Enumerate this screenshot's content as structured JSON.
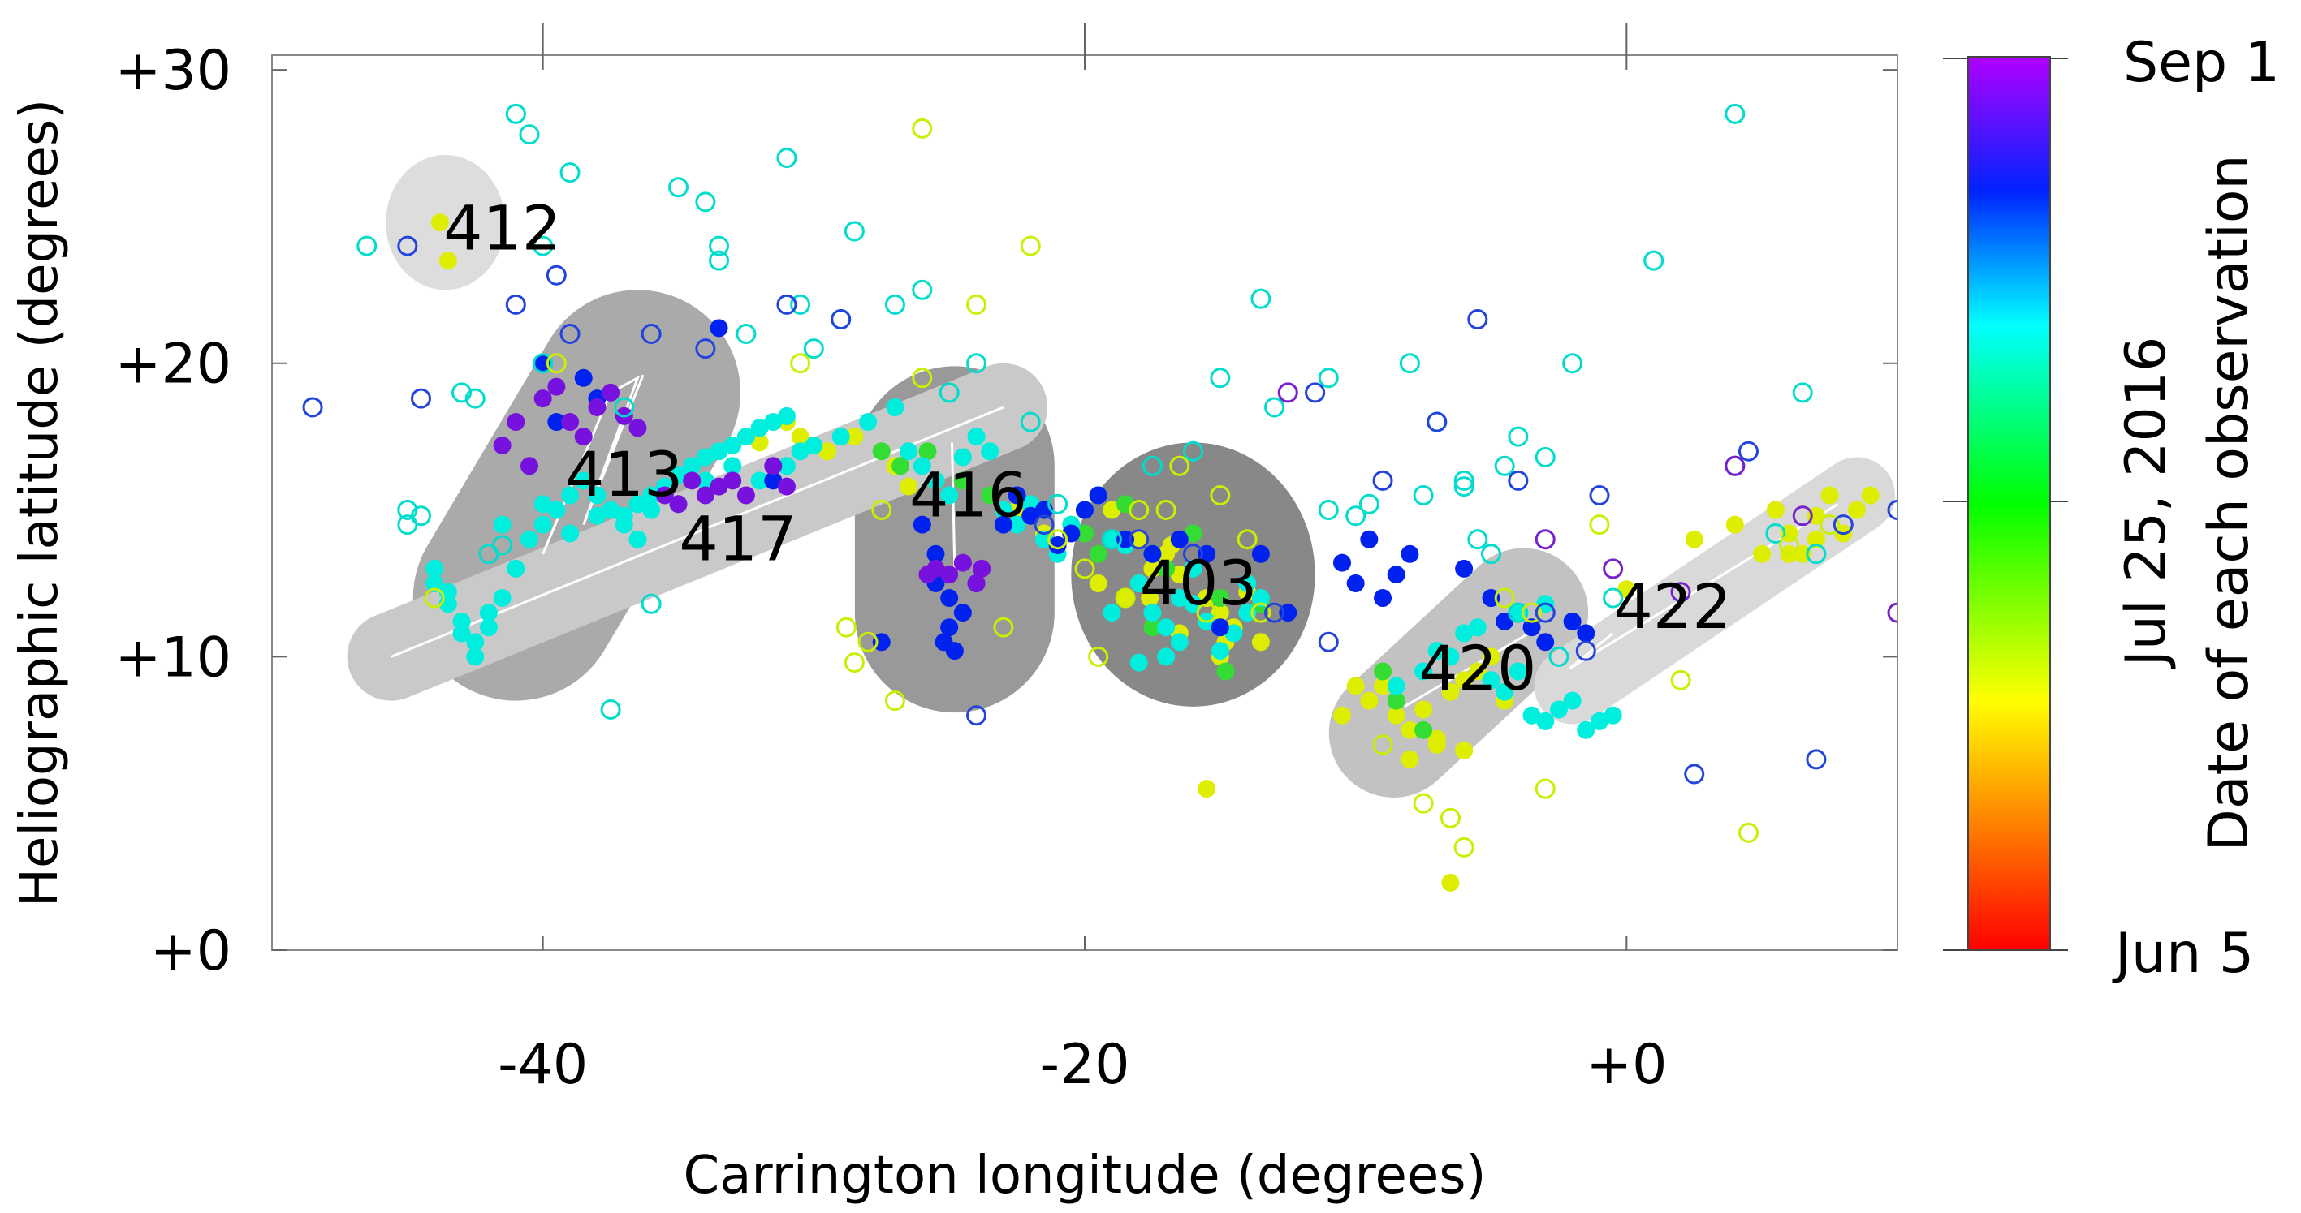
{
  "chart_data": {
    "type": "scatter",
    "xlabel": "Carrington longitude (degrees)",
    "ylabel": "Heliographic latitude (degrees)",
    "xlim": [
      -50,
      10
    ],
    "ylim": [
      0,
      30.5
    ],
    "x_ticks": [
      -40,
      -20,
      0
    ],
    "x_tick_labels": [
      "-40",
      "-20",
      "+0"
    ],
    "y_ticks": [
      0,
      10,
      20,
      30
    ],
    "y_tick_labels": [
      "+0",
      "+10",
      "+20",
      "+30"
    ],
    "grid": false,
    "colorbar": {
      "label": "Date of each observation",
      "tick_labels": [
        "Jun 5",
        "Jul 25, 2016",
        "Sep 1"
      ],
      "colors": [
        "#ff0000",
        "#ffff00",
        "#00ff00",
        "#00ffff",
        "#0000ff",
        "#a000ff"
      ]
    },
    "regions": [
      {
        "name": "412",
        "x": -43.6,
        "y": 24.8,
        "rx": 2.2,
        "ry": 2.3,
        "color": "#dddddd"
      },
      {
        "name": "413",
        "shape": "capsule",
        "x1": -36.5,
        "y1": 19.0,
        "x2": -41.0,
        "y2": 12.0,
        "width": 7.0,
        "color": "#aaaaaa"
      },
      {
        "name": "416",
        "shape": "capsule",
        "x1": -24.8,
        "y1": 16.5,
        "x2": -24.8,
        "y2": 11.5,
        "width": 6.8,
        "color": "#999999"
      },
      {
        "name": "403",
        "x": -16.0,
        "y": 12.8,
        "rx": 4.5,
        "ry": 4.5,
        "color": "#888888"
      },
      {
        "name": "417",
        "shape": "capsule",
        "x1": -45.6,
        "y1": 10.0,
        "x2": -23.0,
        "y2": 18.5,
        "width": 3.0,
        "color": "#c9c9c9"
      },
      {
        "name": "420",
        "shape": "capsule",
        "x1": -8.6,
        "y1": 7.4,
        "x2": -3.8,
        "y2": 11.5,
        "width": 4.4,
        "color": "#c2c2c2"
      },
      {
        "name": "422",
        "shape": "capsule",
        "x1": -2.0,
        "y1": 9.0,
        "x2": 8.5,
        "y2": 15.5,
        "width": 2.6,
        "color": "#d9d9d9"
      }
    ],
    "region_labels": [
      {
        "text": "412",
        "x": -41.5,
        "y": 24.6
      },
      {
        "text": "413",
        "x": -37.0,
        "y": 16.2
      },
      {
        "text": "417",
        "x": -32.8,
        "y": 14.0
      },
      {
        "text": "416",
        "x": -24.3,
        "y": 15.5
      },
      {
        "text": "403",
        "x": -15.8,
        "y": 12.5
      },
      {
        "text": "420",
        "x": -5.5,
        "y": 9.6
      },
      {
        "text": "422",
        "x": 1.7,
        "y": 11.7
      }
    ],
    "trajectories": [
      {
        "points": [
          [
            -45.6,
            10.0
          ],
          [
            -23.0,
            18.5
          ]
        ]
      },
      {
        "points": [
          [
            -40.0,
            13.5
          ],
          [
            -37.5,
            19.0
          ],
          [
            -36.5,
            19.5
          ],
          [
            -38.5,
            14.5
          ],
          [
            -36.3,
            19.6
          ]
        ]
      },
      {
        "points": [
          [
            -24.9,
            17.3
          ],
          [
            -24.8,
            13.0
          ]
        ]
      },
      {
        "points": [
          [
            7.8,
            15.2
          ],
          [
            -2.1,
            9.6
          ],
          [
            -0.5,
            10.8
          ]
        ]
      },
      {
        "points": [
          [
            -8.2,
            8.3
          ],
          [
            -3.6,
            10.8
          ]
        ]
      }
    ],
    "series": [
      {
        "group": "early-jun",
        "color": "#ff9900",
        "filled": false,
        "x": [],
        "y": []
      },
      {
        "group": "mid-jul-yellow",
        "color": "#ddee00",
        "filled": true,
        "x": [
          -43.5,
          -43.8,
          -28.5,
          -27.0,
          -26.5,
          -25.5,
          -22.5,
          -21.5,
          -21.0,
          -20.5,
          -19.5,
          -18.5,
          -18.0,
          -17.5,
          -16.8,
          -16.5,
          -15.5,
          -15.0,
          -14.5,
          -14.0,
          -13.5,
          -15.0,
          -16.5,
          -17.0,
          -18.0,
          -19.0,
          -19.5,
          -17.6,
          -14.8,
          -15.5,
          -10.5,
          -10.0,
          -9.5,
          -9.0,
          -8.5,
          -8.0,
          -7.5,
          -7.0,
          -6.5,
          -6.0,
          -5.5,
          -5.0,
          -4.5,
          -8.0,
          -7.0,
          -6.0,
          -6.5,
          0.0,
          2.5,
          4.0,
          5.5,
          6.0,
          6.5,
          7.0,
          7.5,
          8.0,
          8.5,
          9.0,
          5.0,
          6.0,
          7.0,
          -30.5,
          -29.5,
          -31.0,
          -32.0
        ],
        "y": [
          23.5,
          24.8,
          17.5,
          16.5,
          15.8,
          16.0,
          15.0,
          14.2,
          13.8,
          14.5,
          15.5,
          12.0,
          12.5,
          13.0,
          13.8,
          12.8,
          12.0,
          11.5,
          11.0,
          12.2,
          10.5,
          10.0,
          10.8,
          13.5,
          14.0,
          15.0,
          12.5,
          12.0,
          10.5,
          5.5,
          8.0,
          9.0,
          8.5,
          9.0,
          8.0,
          7.5,
          8.2,
          7.0,
          8.8,
          9.2,
          9.5,
          10.0,
          8.5,
          6.5,
          7.2,
          6.8,
          2.3,
          12.3,
          14.0,
          14.5,
          15.0,
          14.2,
          13.5,
          14.8,
          15.5,
          14.2,
          15.0,
          15.5,
          13.5,
          13.5,
          14.0,
          17.5,
          17.0,
          18.0,
          17.3
        ]
      },
      {
        "group": "late-jul-green",
        "color": "#33dd33",
        "filled": true,
        "x": [
          -27.5,
          -26.8,
          -25.8,
          -24.5,
          -23.5,
          -22.5,
          -20.0,
          -19.5,
          -18.5,
          -17.0,
          -16.0,
          -15.0,
          -13.5,
          -17.5,
          -14.8,
          -9.0,
          -8.5,
          -7.5
        ],
        "y": [
          17.0,
          16.5,
          17.0,
          16.0,
          15.5,
          14.5,
          14.2,
          13.5,
          15.2,
          13.0,
          14.2,
          12.0,
          11.8,
          11.0,
          9.5,
          9.5,
          8.5,
          7.5
        ]
      },
      {
        "group": "aug-cyan",
        "color": "#00eedd",
        "filled": true,
        "x": [
          -44.0,
          -43.5,
          -43.0,
          -42.5,
          -42.0,
          -41.5,
          -41.0,
          -40.5,
          -40.0,
          -39.5,
          -39.0,
          -38.5,
          -38.0,
          -37.5,
          -37.0,
          -36.5,
          -36.0,
          -35.5,
          -35.0,
          -34.5,
          -34.0,
          -33.5,
          -33.0,
          -32.5,
          -32.0,
          -31.5,
          -31.0,
          -44.0,
          -43.5,
          -43.0,
          -42.5,
          -42.0,
          -41.5,
          -40.0,
          -39.0,
          -38.0,
          -37.0,
          -36.5,
          -36.0,
          -35.0,
          -34.0,
          -33.0,
          -32.0,
          -31.0,
          -30.5,
          -30.0,
          -29.0,
          -28.0,
          -27.0,
          -26.5,
          -26.0,
          -25.5,
          -25.0,
          -24.5,
          -24.0,
          -23.5,
          -23.0,
          -22.5,
          -22.0,
          -21.5,
          -21.0,
          -20.5,
          -20.0,
          -19.5,
          -19.0,
          -18.5,
          -18.0,
          -17.5,
          -17.0,
          -16.5,
          -16.0,
          -15.5,
          -15.0,
          -14.5,
          -14.0,
          -13.5,
          -17.0,
          -18.0,
          -19.0,
          -16.5,
          -15.0,
          -14.0,
          -16.0,
          -17.5,
          -8.5,
          -7.5,
          -7.0,
          -6.0,
          -5.5,
          -5.0,
          -4.5,
          -4.0,
          -3.5,
          -3.0,
          -2.5,
          -2.0,
          -1.5,
          -1.0,
          -0.5,
          -6.5,
          -3.0,
          -4.0
        ],
        "y": [
          12.5,
          11.8,
          11.2,
          10.5,
          11.5,
          12.0,
          13.0,
          14.0,
          14.5,
          15.0,
          15.5,
          16.0,
          15.5,
          15.0,
          14.8,
          15.2,
          15.5,
          15.8,
          16.2,
          16.5,
          16.8,
          17.0,
          17.2,
          17.5,
          17.8,
          18.0,
          18.2,
          13.0,
          12.2,
          10.8,
          10.0,
          11.0,
          14.5,
          15.2,
          14.2,
          14.8,
          14.5,
          14.0,
          15.0,
          15.2,
          16.0,
          16.5,
          16.0,
          16.5,
          17.0,
          17.2,
          17.5,
          18.0,
          18.5,
          17.0,
          16.5,
          16.0,
          15.5,
          16.8,
          17.5,
          17.0,
          15.0,
          14.5,
          15.2,
          14.0,
          13.5,
          14.5,
          15.0,
          15.5,
          14.0,
          13.8,
          12.5,
          11.5,
          11.0,
          12.0,
          11.8,
          11.2,
          11.0,
          10.8,
          11.5,
          12.0,
          10.0,
          9.8,
          11.5,
          10.5,
          10.2,
          12.5,
          13.0,
          13.5,
          9.0,
          9.5,
          10.2,
          10.8,
          11.0,
          9.2,
          8.8,
          9.5,
          8.0,
          7.8,
          8.2,
          8.5,
          7.5,
          7.8,
          8.0,
          10.0,
          11.8,
          11.5
        ]
      },
      {
        "group": "aug-blue",
        "color": "#0022ee",
        "filled": true,
        "x": [
          -40.0,
          -39.5,
          -38.5,
          -38.0,
          -33.5,
          -31.5,
          -27.5,
          -26.0,
          -25.5,
          -25.0,
          -24.5,
          -24.0,
          -23.0,
          -22.5,
          -22.0,
          -21.5,
          -21.0,
          -20.5,
          -20.0,
          -19.5,
          -18.5,
          -17.5,
          -16.5,
          -15.5,
          -15.0,
          -13.5,
          -12.5,
          -10.5,
          -10.0,
          -9.5,
          -9.0,
          -8.5,
          -8.0,
          -6.0,
          -5.0,
          -4.5,
          -3.5,
          -3.0,
          -2.0,
          -1.5,
          -25.0,
          -25.2,
          -24.8,
          -25.5
        ],
        "y": [
          20.0,
          18.0,
          19.5,
          18.8,
          21.2,
          16.0,
          10.5,
          14.5,
          12.5,
          12.0,
          11.5,
          12.5,
          14.5,
          15.5,
          14.8,
          15.0,
          13.8,
          14.2,
          15.0,
          15.5,
          14.0,
          13.5,
          14.0,
          13.5,
          11.0,
          13.5,
          11.5,
          13.2,
          12.5,
          14.0,
          12.0,
          12.8,
          13.5,
          13.0,
          12.0,
          11.2,
          11.0,
          10.5,
          11.2,
          10.8,
          11.0,
          10.5,
          10.2,
          13.5
        ]
      },
      {
        "group": "sep-purple",
        "color": "#7711dd",
        "filled": true,
        "x": [
          -41.5,
          -40.0,
          -39.5,
          -39.0,
          -38.5,
          -38.0,
          -37.5,
          -37.0,
          -36.5,
          -41.0,
          -40.5,
          -35.5,
          -35.0,
          -34.5,
          -34.0,
          -33.5,
          -33.0,
          -32.5,
          -31.5,
          -31.0,
          -25.5,
          -25.0,
          -24.5,
          -24.0,
          -25.8,
          -23.8
        ],
        "y": [
          17.2,
          18.8,
          19.2,
          18.0,
          17.5,
          18.5,
          19.0,
          18.2,
          17.8,
          18.0,
          16.5,
          15.5,
          15.2,
          16.0,
          15.5,
          15.8,
          16.0,
          15.5,
          16.5,
          15.8,
          13.0,
          12.8,
          13.2,
          12.5,
          12.8,
          13.0
        ]
      },
      {
        "group": "outline-cyan",
        "color": "#00ddcc",
        "filled": false,
        "x": [
          -46.5,
          -45.0,
          -43.0,
          -41.0,
          -40.5,
          -40.0,
          -39.0,
          -37.0,
          -35.0,
          -34.0,
          -33.5,
          -32.5,
          -31.0,
          -30.0,
          -28.5,
          -27.0,
          -26.0,
          -25.0,
          -24.0,
          -22.0,
          -21.0,
          -19.0,
          -17.5,
          -16.0,
          -15.0,
          -13.0,
          -11.0,
          -10.0,
          -9.5,
          -8.0,
          -7.0,
          -6.0,
          -5.5,
          -5.0,
          -4.5,
          -4.0,
          -3.0,
          -2.0,
          1.0,
          4.0,
          5.5,
          6.5,
          7.0,
          -45.0,
          -44.5,
          -42.5,
          -42.0,
          -41.5,
          -40.0,
          -37.5,
          -36.0,
          -30.5,
          -29.0,
          -33.5,
          -13.5,
          -11.0,
          -7.5,
          -6.0,
          -4.0,
          -2.5,
          -0.5
        ],
        "y": [
          24.0,
          14.5,
          19.0,
          28.5,
          27.8,
          24.0,
          26.5,
          18.5,
          26.0,
          25.5,
          23.5,
          21.0,
          27.0,
          20.5,
          24.5,
          22.0,
          22.5,
          19.0,
          20.0,
          18.0,
          15.2,
          14.0,
          16.5,
          17.0,
          19.5,
          18.5,
          15.0,
          14.8,
          15.2,
          20.0,
          18.0,
          15.8,
          14.0,
          13.5,
          16.5,
          17.5,
          16.8,
          20.0,
          23.5,
          28.5,
          14.2,
          19.0,
          13.5,
          15.0,
          14.8,
          18.8,
          13.5,
          13.8,
          20.0,
          8.2,
          11.8,
          22.0,
          21.5,
          24.0,
          22.2,
          19.5,
          15.5,
          16.0,
          11.5,
          10.0,
          12.0
        ]
      },
      {
        "group": "outline-yellow",
        "color": "#ccee00",
        "filled": false,
        "x": [
          -44.0,
          -39.5,
          -30.5,
          -28.8,
          -28.5,
          -28.0,
          -27.0,
          -26.0,
          -24.0,
          -23.0,
          -22.0,
          -21.0,
          -20.0,
          -18.0,
          -17.0,
          -16.5,
          -15.5,
          -15.0,
          -14.0,
          -13.5,
          -9.0,
          -7.5,
          -6.5,
          -6.0,
          -4.5,
          -3.5,
          -3.0,
          -1.0,
          2.0,
          4.5,
          6.0,
          7.5,
          -26.0,
          -19.5,
          -18.5,
          -27.5
        ],
        "y": [
          12.0,
          20.0,
          20.0,
          11.0,
          9.8,
          10.5,
          8.5,
          19.5,
          22.0,
          11.0,
          24.0,
          14.0,
          13.0,
          15.0,
          15.0,
          16.5,
          11.5,
          15.5,
          14.0,
          11.5,
          7.0,
          5.0,
          4.5,
          3.5,
          12.0,
          11.5,
          5.5,
          14.5,
          9.2,
          4.0,
          13.8,
          14.5,
          28.0,
          10.0,
          12.0,
          15.0
        ]
      },
      {
        "group": "outline-blue",
        "color": "#2244dd",
        "filled": false,
        "x": [
          -48.5,
          -45.0,
          -44.5,
          -41.0,
          -39.5,
          -39.0,
          -36.0,
          -34.0,
          -31.0,
          -29.0,
          -24.0,
          -21.5,
          -18.0,
          -16.0,
          -13.0,
          -11.0,
          -9.0,
          -7.0,
          -5.5,
          -4.0,
          -3.0,
          -1.0,
          2.5,
          4.0,
          4.5,
          7.0,
          8.0,
          10.0,
          -1.5,
          -11.5
        ],
        "y": [
          18.5,
          24.0,
          18.8,
          22.0,
          23.0,
          21.0,
          21.0,
          20.5,
          22.0,
          21.5,
          8.0,
          14.5,
          14.0,
          13.5,
          11.5,
          10.5,
          16.0,
          18.0,
          21.5,
          16.0,
          11.5,
          15.5,
          6.0,
          16.5,
          17.0,
          6.5,
          14.5,
          15.0,
          10.2,
          19.0
        ]
      },
      {
        "group": "outline-purple",
        "color": "#7722cc",
        "filled": false,
        "x": [
          -12.5,
          -3.0,
          -0.5,
          2.0,
          4.0,
          6.5,
          10.0
        ],
        "y": [
          19.0,
          14.0,
          13.0,
          12.2,
          16.5,
          14.8,
          11.5
        ]
      }
    ]
  }
}
